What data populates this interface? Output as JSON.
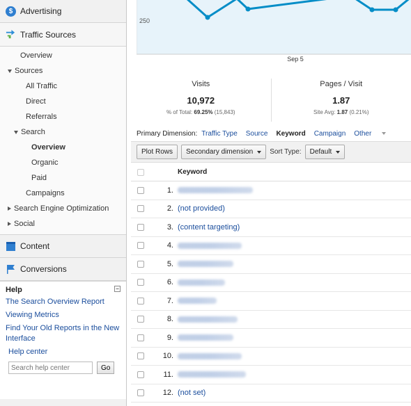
{
  "sidebar": {
    "advertising": "Advertising",
    "traffic_sources": "Traffic Sources",
    "sub_items": [
      {
        "label": "Overview",
        "level": 1,
        "marker": ""
      },
      {
        "label": "Sources",
        "level": 1,
        "marker": "down"
      },
      {
        "label": "All Traffic",
        "level": 2,
        "marker": ""
      },
      {
        "label": "Direct",
        "level": 2,
        "marker": ""
      },
      {
        "label": "Referrals",
        "level": 2,
        "marker": ""
      },
      {
        "label": "Search",
        "level": 2,
        "marker": "down"
      },
      {
        "label": "Overview",
        "level": 3,
        "marker": "",
        "active": true
      },
      {
        "label": "Organic",
        "level": 3,
        "marker": ""
      },
      {
        "label": "Paid",
        "level": 3,
        "marker": ""
      },
      {
        "label": "Campaigns",
        "level": 2,
        "marker": ""
      },
      {
        "label": "Search Engine Optimization",
        "level": 1,
        "marker": "right"
      },
      {
        "label": "Social",
        "level": 1,
        "marker": "right"
      }
    ],
    "content": "Content",
    "conversions": "Conversions"
  },
  "help": {
    "title": "Help",
    "links": [
      "The Search Overview Report",
      "Viewing Metrics",
      "Find Your Old Reports in the New Interface"
    ],
    "help_center": "Help center",
    "search_placeholder": "Search help center",
    "go": "Go"
  },
  "chart": {
    "y_label": "250",
    "x_label": "Sep 5",
    "line_color": "#058dc7",
    "fill_color": "#e7f3fa"
  },
  "metrics": [
    {
      "label": "Visits",
      "value": "10,972",
      "sub_prefix": "% of Total:",
      "sub_bold": "69.25%",
      "sub_suffix": "(15,843)"
    },
    {
      "label": "Pages / Visit",
      "value": "1.87",
      "sub_prefix": "Site Avg:",
      "sub_bold": "1.87",
      "sub_suffix": "(0.21%)"
    }
  ],
  "dimensions": {
    "label": "Primary Dimension:",
    "items": [
      "Traffic Type",
      "Source",
      "Keyword",
      "Campaign",
      "Other"
    ],
    "current": "Keyword"
  },
  "toolbar": {
    "plot_rows": "Plot Rows",
    "secondary": "Secondary dimension",
    "sort_label": "Sort Type:",
    "sort_value": "Default"
  },
  "table": {
    "header": "Keyword",
    "rows": [
      {
        "index": "1.",
        "keyword": "",
        "blurred": true
      },
      {
        "index": "2.",
        "keyword": "(not provided)",
        "blurred": false
      },
      {
        "index": "3.",
        "keyword": "(content targeting)",
        "blurred": false
      },
      {
        "index": "4.",
        "keyword": "",
        "blurred": true
      },
      {
        "index": "5.",
        "keyword": "",
        "blurred": true
      },
      {
        "index": "6.",
        "keyword": "",
        "blurred": true
      },
      {
        "index": "7.",
        "keyword": "",
        "blurred": true
      },
      {
        "index": "8.",
        "keyword": "",
        "blurred": true
      },
      {
        "index": "9.",
        "keyword": "",
        "blurred": true
      },
      {
        "index": "10.",
        "keyword": "",
        "blurred": true
      },
      {
        "index": "11.",
        "keyword": "",
        "blurred": true
      },
      {
        "index": "12.",
        "keyword": "(not set)",
        "blurred": false
      }
    ]
  }
}
